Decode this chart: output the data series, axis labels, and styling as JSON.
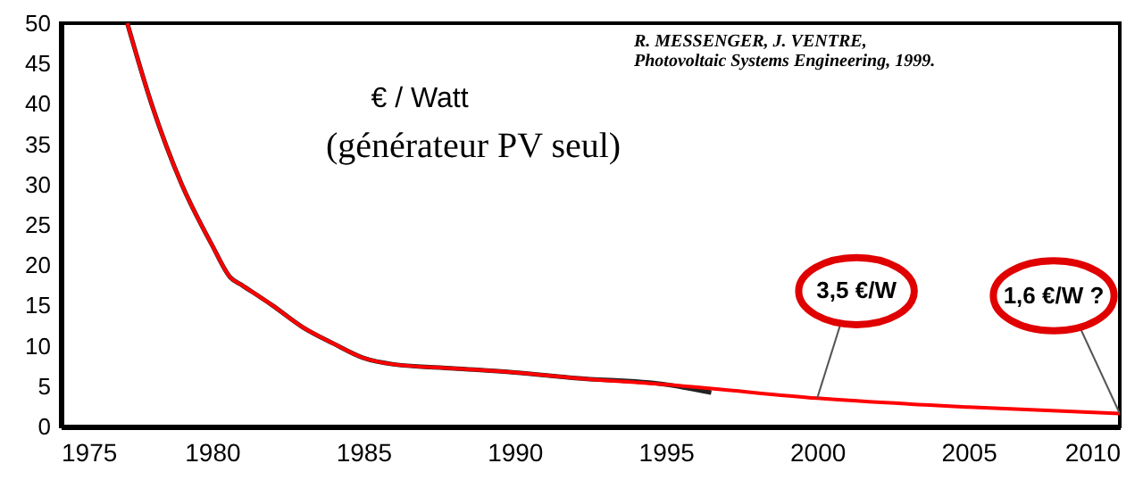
{
  "chart_data": {
    "type": "line",
    "xlim": [
      1975,
      2010
    ],
    "xticks": [
      1975,
      1980,
      1985,
      1990,
      1995,
      2000,
      2005,
      2010
    ],
    "ylim": [
      0,
      50
    ],
    "yticks": [
      0,
      5,
      10,
      15,
      20,
      25,
      30,
      35,
      40,
      45,
      50
    ],
    "grid": false,
    "marker": "none",
    "line_style": "solid",
    "series": [
      {
        "color": "#222222",
        "x": [
          1977.2,
          1978,
          1979,
          1980,
          1980.6,
          1981,
          1982,
          1983,
          1984,
          1985,
          1986,
          1988,
          1990,
          1992,
          1995,
          1996.5
        ],
        "values": [
          50,
          40,
          30,
          22.5,
          18.5,
          17.5,
          15,
          12.3,
          10.3,
          8.5,
          7.7,
          7.2,
          6.7,
          6.0,
          5.2,
          4.2
        ]
      },
      {
        "color": "#ff0000",
        "x": [
          1977.2,
          1978,
          1979,
          1980,
          1980.6,
          1981,
          1982,
          1983,
          1984,
          1985,
          1986,
          1988,
          1990,
          1992,
          1995,
          1996.5,
          2000,
          2005,
          2010
        ],
        "values": [
          50,
          40,
          30,
          22.5,
          18.5,
          17.5,
          15,
          12.3,
          10.3,
          8.5,
          7.7,
          7.2,
          6.7,
          6.0,
          5.2,
          4.7,
          3.5,
          2.4,
          1.6
        ]
      }
    ],
    "annotations": [
      "€ / Watt",
      "(générateur PV seul)",
      "R. MESSENGER, J. VENTRE,",
      "Photovoltaic Systems Engineering, 1999.",
      {
        "text": "3,5 €/W",
        "x": 2000,
        "y": 3.5
      },
      {
        "text": "1,6 €/W ?",
        "x": 2010,
        "y": 1.6
      }
    ]
  }
}
